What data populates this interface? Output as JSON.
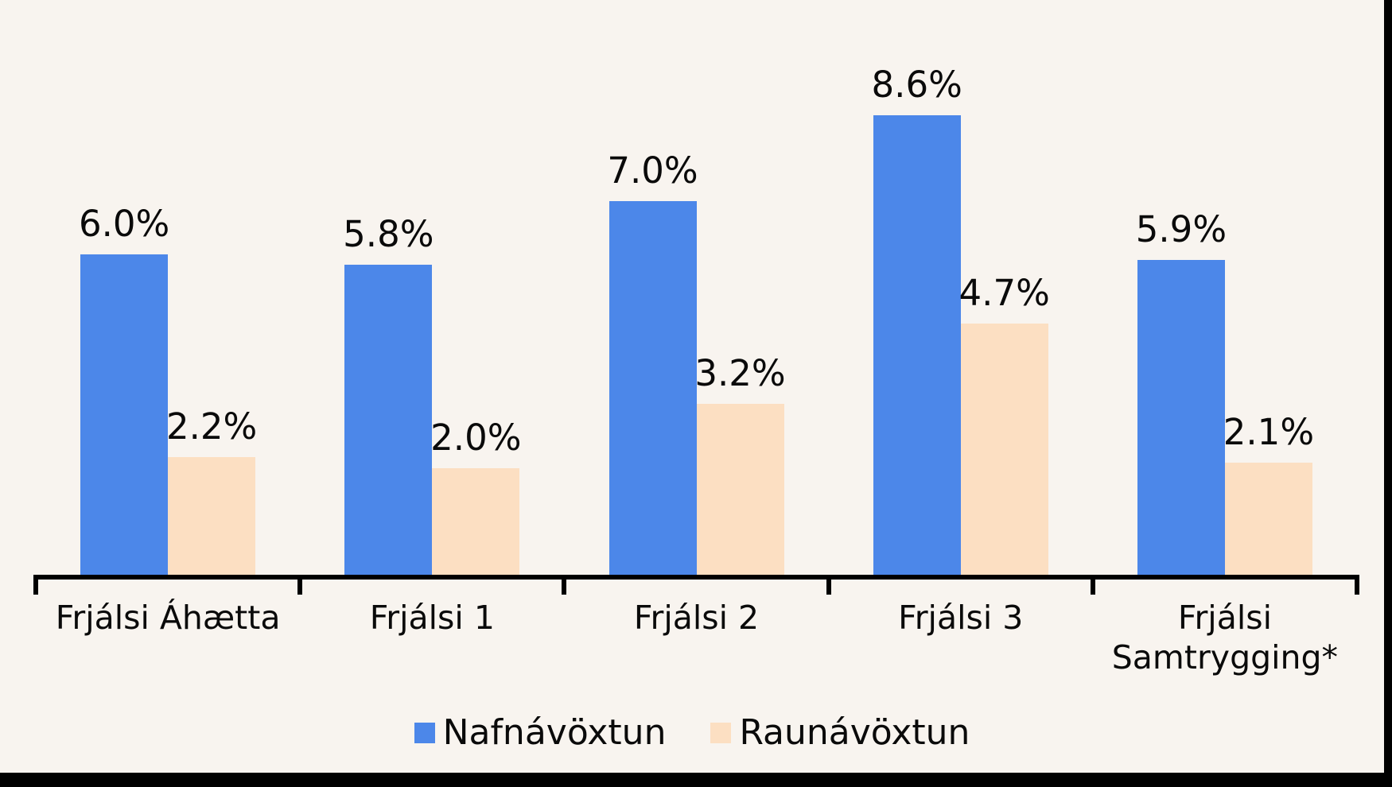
{
  "colors": {
    "background": "#F8F4EF",
    "bar_blue": "#4C87E9",
    "bar_peach": "#FCDFC2",
    "axis": "#000000",
    "text": "#0A0A0A",
    "edge_band": "#000000"
  },
  "chart_data": {
    "type": "bar",
    "title": "",
    "xlabel": "",
    "ylabel": "",
    "ylim": [
      0,
      9
    ],
    "grid": false,
    "y_axis_visible": false,
    "legend_position": "bottom",
    "categories": [
      "Frjálsi Áhætta",
      "Frjálsi 1",
      "Frjálsi 2",
      "Frjálsi 3",
      "Frjálsi Samtrygging*"
    ],
    "series": [
      {
        "name": "Nafnávöxtun",
        "color": "#4C87E9",
        "values": [
          6.0,
          5.8,
          7.0,
          8.6,
          5.9
        ],
        "labels": [
          "6.0%",
          "5.8%",
          "7.0%",
          "8.6%",
          "5.9%"
        ]
      },
      {
        "name": "Raunávöxtun",
        "color": "#FCDFC2",
        "values": [
          2.2,
          2.0,
          3.2,
          4.7,
          2.1
        ],
        "labels": [
          "2.2%",
          "2.0%",
          "3.2%",
          "4.7%",
          "2.1%"
        ]
      }
    ]
  },
  "legend": {
    "items": [
      {
        "label": "Nafnávöxtun",
        "color": "#4C87E9"
      },
      {
        "label": "Raunávöxtun",
        "color": "#FCDFC2"
      }
    ]
  }
}
